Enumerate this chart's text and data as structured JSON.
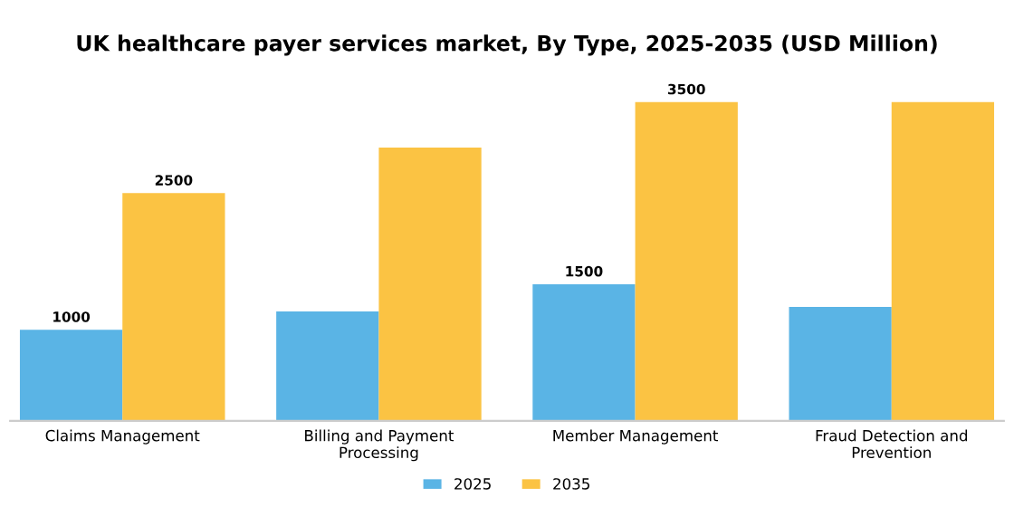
{
  "chart_data": {
    "type": "bar",
    "title": "UK healthcare payer services market, By Type, 2025-2035 (USD Million)",
    "categories": [
      "Claims Management",
      "Billing and Payment\nProcessing",
      "Member Management",
      "Fraud Detection and\nPrevention"
    ],
    "series": [
      {
        "name": "2025",
        "color": "#5ab4e5",
        "values": [
          1000,
          1200,
          1500,
          1250
        ],
        "value_labels": [
          "1000",
          null,
          "1500",
          null
        ]
      },
      {
        "name": "2035",
        "color": "#fbc343",
        "values": [
          2500,
          3000,
          3500,
          3500
        ],
        "value_labels": [
          "2500",
          null,
          "3500",
          null
        ]
      }
    ],
    "legend": "bottom",
    "grid": false,
    "tick_labels": "x"
  }
}
